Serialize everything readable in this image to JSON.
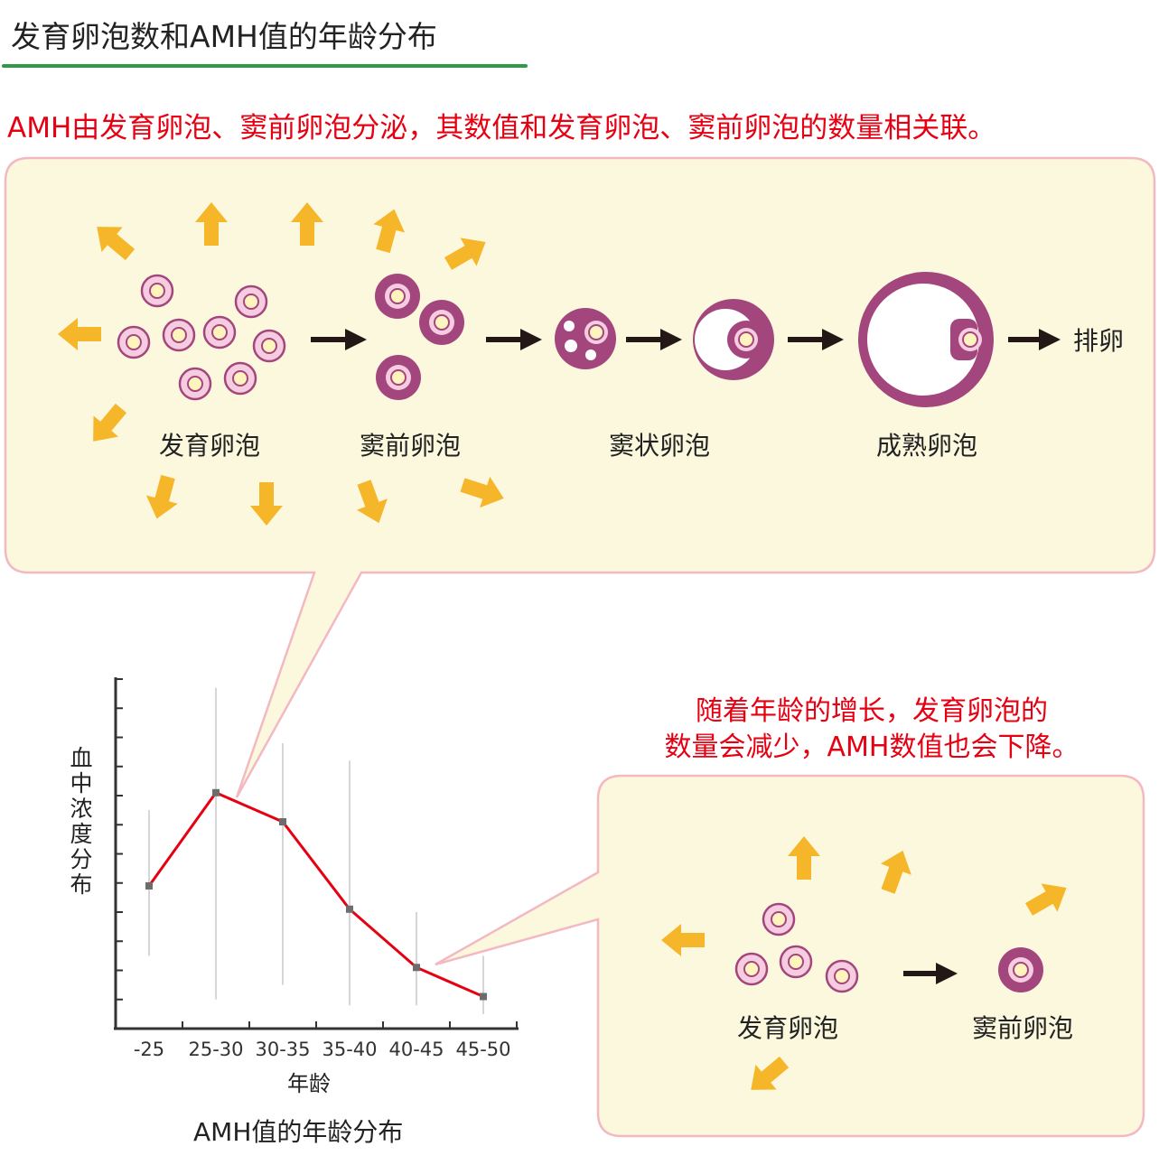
{
  "title": "发育卵泡数和AMH值的年龄分布",
  "lead": "AMH由发育卵泡、窦前卵泡分泌，其数值和发育卵泡、窦前卵泡的数量相关联。",
  "top_panel": {
    "stages": [
      "发育卵泡",
      "窦前卵泡",
      "窦状卵泡",
      "成熟卵泡"
    ],
    "end_label": "排卵"
  },
  "bottom_panel": {
    "caption_line1": "随着年龄的增长，发育卵泡的",
    "caption_line2": "数量会减少，AMH数值也会下降。",
    "stages": [
      "发育卵泡",
      "窦前卵泡"
    ]
  },
  "colors": {
    "panel_fill": "#fbf8dd",
    "panel_border": "#f3b9c2",
    "arrow_yellow": "#f6b62a",
    "follicle_outer": "#a4467e",
    "follicle_light": "#f6cde0",
    "egg_yellow": "#fff4bd",
    "accent_red": "#e60012",
    "title_rule": "#2e9a45"
  },
  "chart_data": {
    "type": "line",
    "categories": [
      "-25",
      "25-30",
      "30-35",
      "35-40",
      "40-45",
      "45-50"
    ],
    "series": [
      {
        "values": [
          4.9,
          8.1,
          7.1,
          4.1,
          2.1,
          1.1
        ]
      }
    ],
    "ranges": [
      [
        2.5,
        7.5
      ],
      [
        1.0,
        11.7
      ],
      [
        1.5,
        9.8
      ],
      [
        0.8,
        9.2
      ],
      [
        0.8,
        4.0
      ],
      [
        0.5,
        2.5
      ]
    ],
    "ylim": [
      0,
      12
    ],
    "xlabel": "年龄",
    "ylabel": "血中浓度分布",
    "caption": "AMH值的年龄分布",
    "y_tick_labels": false,
    "line_color": "#e60012"
  }
}
